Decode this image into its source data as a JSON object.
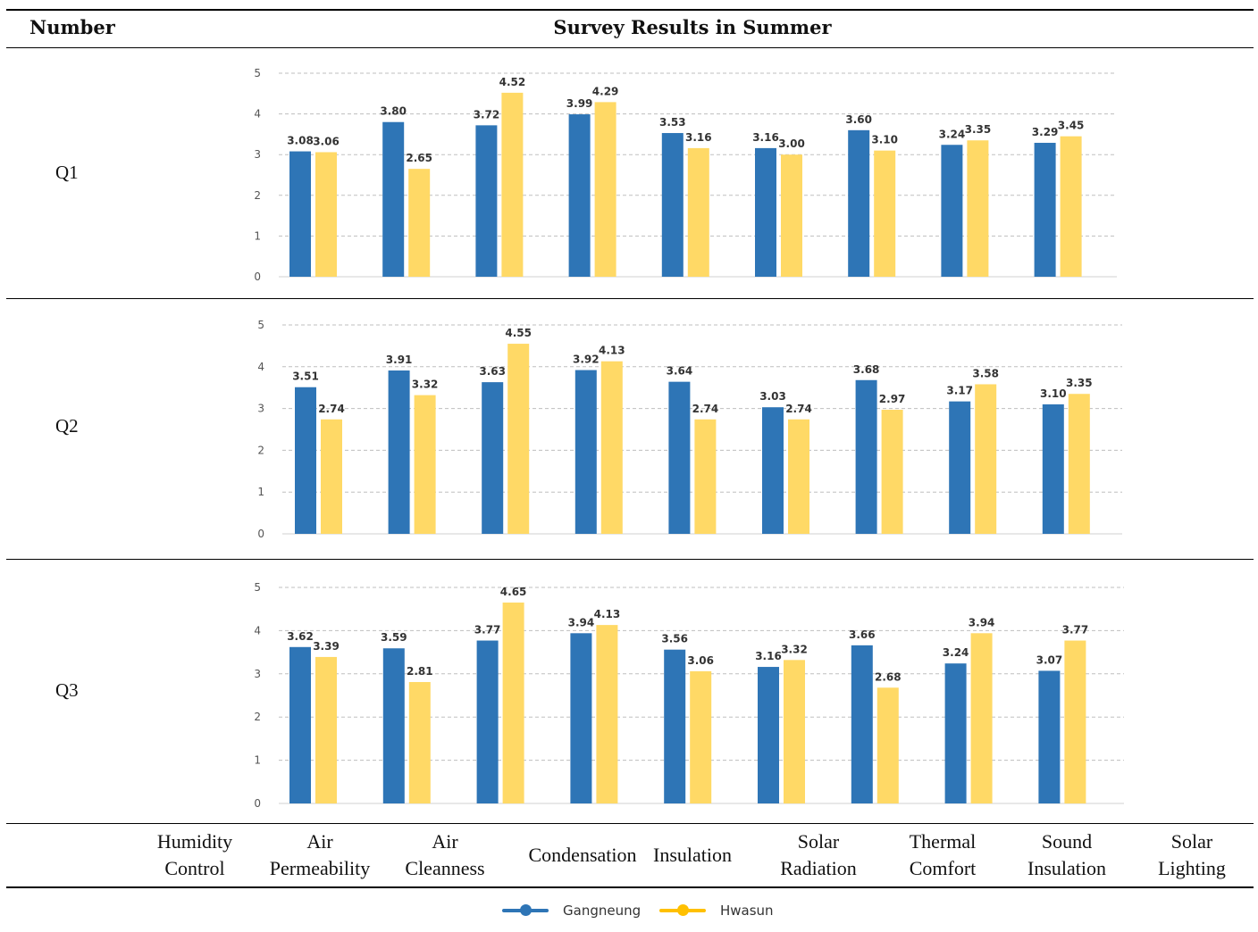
{
  "table": {
    "header_number": "Number",
    "header_title": "Survey Results in Summer",
    "rows": [
      "Q1",
      "Q2",
      "Q3"
    ],
    "categories": [
      [
        "Humidity",
        "Control"
      ],
      [
        "Air",
        "Permeability"
      ],
      [
        "Air",
        "Cleanness"
      ],
      [
        "Condensation"
      ],
      [
        "Insulation"
      ],
      [
        "Solar",
        "Radiation"
      ],
      [
        "Thermal",
        "Comfort"
      ],
      [
        "Sound",
        "Insulation"
      ],
      [
        "Solar",
        "Lighting"
      ]
    ]
  },
  "colors": {
    "gangneung": "#2e75b6",
    "hwasun": "#ffd966",
    "grid": "#bfbfbf"
  },
  "chart_data": [
    {
      "type": "bar",
      "title": "Q1",
      "ylim": [
        0,
        5
      ],
      "yticks": [
        0,
        1,
        2,
        3,
        4,
        5
      ],
      "grid": true,
      "legend": "bottom",
      "series": [
        {
          "name": "Gangneung",
          "values": [
            3.08,
            3.8,
            3.72,
            3.99,
            3.53,
            3.16,
            3.6,
            3.24,
            3.29
          ]
        },
        {
          "name": "Hwasun",
          "values": [
            3.06,
            2.65,
            4.52,
            4.29,
            3.16,
            3.0,
            3.1,
            3.35,
            3.45
          ]
        }
      ]
    },
    {
      "type": "bar",
      "title": "Q2",
      "ylim": [
        0,
        5
      ],
      "yticks": [
        0,
        1,
        2,
        3,
        4,
        5
      ],
      "grid": true,
      "legend": "bottom",
      "series": [
        {
          "name": "Gangneung",
          "values": [
            3.51,
            3.91,
            3.63,
            3.92,
            3.64,
            3.03,
            3.68,
            3.17,
            3.1
          ]
        },
        {
          "name": "Hwasun",
          "values": [
            2.74,
            3.32,
            4.55,
            4.13,
            2.74,
            2.74,
            2.97,
            3.58,
            3.35
          ]
        }
      ]
    },
    {
      "type": "bar",
      "title": "Q3",
      "ylim": [
        0,
        5
      ],
      "yticks": [
        0,
        1,
        2,
        3,
        4,
        5
      ],
      "grid": true,
      "legend": "bottom",
      "series": [
        {
          "name": "Gangneung",
          "values": [
            3.62,
            3.59,
            3.77,
            3.94,
            3.56,
            3.16,
            3.66,
            3.24,
            3.07
          ]
        },
        {
          "name": "Hwasun",
          "values": [
            3.39,
            2.81,
            4.65,
            4.13,
            3.06,
            3.32,
            2.68,
            3.94,
            3.77
          ]
        }
      ]
    }
  ],
  "legend": {
    "items": [
      "Gangneung",
      "Hwasun"
    ]
  }
}
